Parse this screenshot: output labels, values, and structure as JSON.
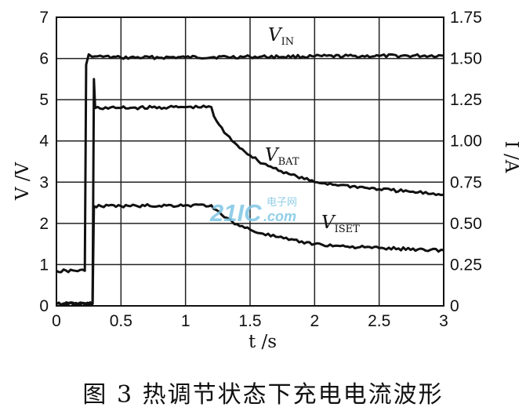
{
  "chart_data": {
    "type": "line",
    "xlabel": "t /s",
    "ylabel_left": "V /V",
    "ylabel_right": "I /A",
    "xlim": [
      0,
      3
    ],
    "ylim_left": [
      0,
      7
    ],
    "ylim_right": [
      0,
      1.75
    ],
    "x_ticks": [
      "0",
      "0.5",
      "1",
      "1.5",
      "2",
      "2.5",
      "3"
    ],
    "y_ticks_left": [
      "0",
      "1",
      "2",
      "3",
      "4",
      "5",
      "6",
      "7"
    ],
    "y_ticks_right": [
      "0",
      "0.25",
      "0.50",
      "0.75",
      "1.00",
      "1.25",
      "1.50",
      "1.75"
    ],
    "grid": true,
    "series": [
      {
        "name": "VIN",
        "label_main": "V",
        "label_sub": "IN",
        "axis": "left",
        "x": [
          0,
          0.22,
          0.23,
          0.25,
          0.3,
          0.5,
          1,
          1.5,
          2,
          2.5,
          3
        ],
        "y": [
          0.85,
          0.85,
          5.85,
          6.1,
          6.05,
          6.02,
          6.03,
          6.04,
          6.05,
          6.06,
          6.07
        ]
      },
      {
        "name": "VBAT",
        "label_main": "V",
        "label_sub": "BAT",
        "axis": "left",
        "x": [
          0,
          0.28,
          0.29,
          0.3,
          0.5,
          1,
          1.2,
          1.22,
          1.3,
          1.4,
          1.5,
          1.6,
          1.8,
          2,
          2.2,
          2.5,
          2.8,
          3
        ],
        "y": [
          0.05,
          0.05,
          5.5,
          4.8,
          4.8,
          4.82,
          4.82,
          4.6,
          4.2,
          3.9,
          3.65,
          3.45,
          3.2,
          3.0,
          2.93,
          2.83,
          2.75,
          2.7
        ]
      },
      {
        "name": "VISET",
        "label_main": "V",
        "label_sub": "ISET",
        "axis": "left",
        "x": [
          0,
          0.28,
          0.29,
          0.5,
          1,
          1.2,
          1.22,
          1.3,
          1.4,
          1.5,
          1.6,
          1.8,
          2,
          2.2,
          2.5,
          2.8,
          3
        ],
        "y": [
          0.05,
          0.05,
          2.42,
          2.42,
          2.44,
          2.44,
          2.35,
          2.15,
          1.98,
          1.85,
          1.75,
          1.6,
          1.5,
          1.45,
          1.4,
          1.37,
          1.35
        ]
      }
    ]
  },
  "caption": "图 3   热调节状态下充电电流波形",
  "watermark": {
    "text_main": "21IC",
    "text_sub": "电子网",
    "text_url": ".com"
  },
  "colors": {
    "line": "#111111",
    "grid": "#222222",
    "watermark": "#7fc6e4"
  }
}
